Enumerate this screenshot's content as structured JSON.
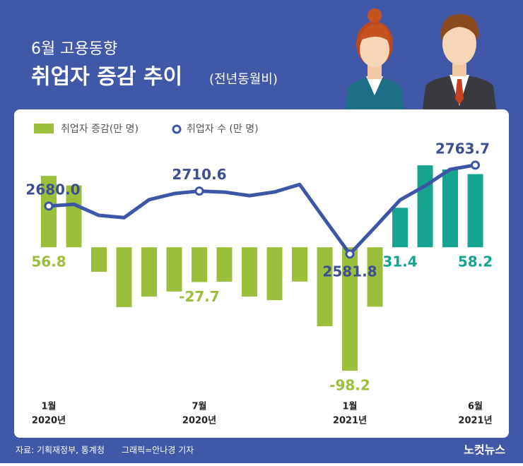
{
  "supertitle": "6월 고용동향",
  "source": "자료: 기획재정부, 통계청",
  "credit": "그래픽=안나경 기자",
  "logo": "노컷뉴스",
  "chart_data": {
    "type": "combo",
    "title": "취업자 증감 추이",
    "subtitle": "(전년동월비)",
    "categories": [
      "1월",
      null,
      null,
      null,
      null,
      null,
      "7월",
      null,
      null,
      null,
      null,
      null,
      "1월",
      null,
      null,
      null,
      null,
      "6월"
    ],
    "category_years": [
      "2020년",
      null,
      null,
      null,
      null,
      null,
      "2020년",
      null,
      null,
      null,
      null,
      null,
      "2021년",
      null,
      null,
      null,
      null,
      "2021년"
    ],
    "ylim": [
      -110,
      90
    ],
    "y2lim": [
      2313,
      2827
    ],
    "series": [
      {
        "name": "취업자 증감(만 명)",
        "type": "bar",
        "color": "#9bbf3a",
        "colors": [
          "#9bbf3a",
          "#9bbf3a",
          "#9bbf3a",
          "#9bbf3a",
          "#9bbf3a",
          "#9bbf3a",
          "#9bbf3a",
          "#9bbf3a",
          "#9bbf3a",
          "#9bbf3a",
          "#9bbf3a",
          "#9bbf3a",
          "#9bbf3a",
          "#9bbf3a",
          "#16a38f",
          "#16a38f",
          "#16a38f",
          "#16a38f"
        ],
        "values": [
          56.8,
          49.2,
          -19.5,
          -47.6,
          -39.2,
          -35.2,
          -27.7,
          -27.4,
          -39.2,
          -42.1,
          -27.3,
          -62.8,
          -98.2,
          -47.3,
          31.4,
          65.2,
          61.9,
          58.2
        ],
        "value_labels": [
          "56.8",
          null,
          null,
          null,
          null,
          null,
          "-27.7",
          null,
          null,
          null,
          null,
          null,
          "-98.2",
          null,
          "31.4",
          null,
          null,
          "58.2"
        ]
      },
      {
        "name": "취업자 수 (만 명)",
        "type": "line",
        "axis": "y2",
        "color": "#3d56a6",
        "values": [
          2680.0,
          2683.6,
          2660.9,
          2656.2,
          2693.0,
          2705.5,
          2710.6,
          2708.5,
          2701.2,
          2708.8,
          2724.1,
          2652.6,
          2581.8,
          2636.5,
          2692.3,
          2721.4,
          2755.0,
          2763.7
        ],
        "value_labels": [
          "2680.0",
          null,
          null,
          null,
          null,
          null,
          "2710.6",
          null,
          null,
          null,
          null,
          null,
          "2581.8",
          null,
          null,
          null,
          null,
          "2763.7"
        ]
      }
    ]
  }
}
